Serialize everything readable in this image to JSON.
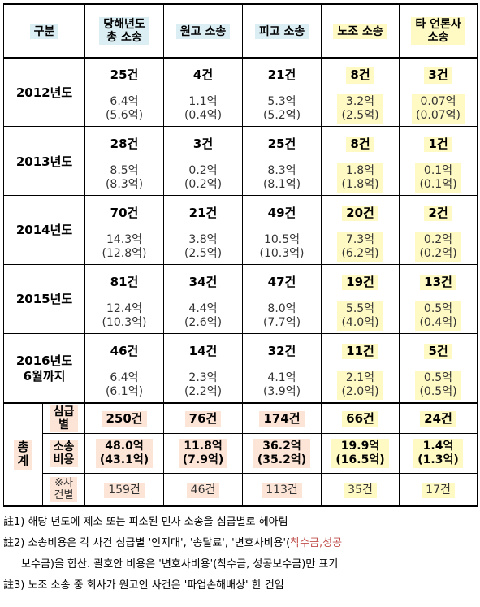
{
  "header": {
    "category": "구분",
    "total_line1": "당해년도",
    "total_line2": "총 소송",
    "plaintiff": "원고 소송",
    "defendant": "피고 소송",
    "labor": "노조 소송",
    "media_line1": "타 언론사",
    "media_line2": "소송"
  },
  "years": [
    {
      "label1": "2012년도",
      "label2": "",
      "total_count": "25건",
      "plaintiff_count": "4건",
      "defendant_count": "21건",
      "labor_count": "8건",
      "media_count": "3건",
      "total_cost": "6.4억",
      "total_cost_sub": "(5.6억)",
      "plaintiff_cost": "1.1억",
      "plaintiff_cost_sub": "(0.4억)",
      "defendant_cost": "5.3억",
      "defendant_cost_sub": "(5.2억)",
      "labor_cost": "3.2억",
      "labor_cost_sub": "(2.5억)",
      "media_cost": "0.07억",
      "media_cost_sub": "(0.07억)"
    },
    {
      "label1": "2013년도",
      "label2": "",
      "total_count": "28건",
      "plaintiff_count": "3건",
      "defendant_count": "25건",
      "labor_count": "8건",
      "media_count": "1건",
      "total_cost": "8.5억",
      "total_cost_sub": "(8.3억)",
      "plaintiff_cost": "0.2억",
      "plaintiff_cost_sub": "(0.2억)",
      "defendant_cost": "8.3억",
      "defendant_cost_sub": "(8.1억)",
      "labor_cost": "1.8억",
      "labor_cost_sub": "(1.8억)",
      "media_cost": "0.1억",
      "media_cost_sub": "(0.1억)"
    },
    {
      "label1": "2014년도",
      "label2": "",
      "total_count": "70건",
      "plaintiff_count": "21건",
      "defendant_count": "49건",
      "labor_count": "20건",
      "media_count": "2건",
      "total_cost": "14.3억",
      "total_cost_sub": "(12.8억)",
      "plaintiff_cost": "3.8억",
      "plaintiff_cost_sub": "(2.5억)",
      "defendant_cost": "10.5억",
      "defendant_cost_sub": "(10.3억)",
      "labor_cost": "7.3억",
      "labor_cost_sub": "(6.2억)",
      "media_cost": "0.2억",
      "media_cost_sub": "(0.2억)"
    },
    {
      "label1": "2015년도",
      "label2": "",
      "total_count": "81건",
      "plaintiff_count": "34건",
      "defendant_count": "47건",
      "labor_count": "19건",
      "media_count": "13건",
      "total_cost": "12.4억",
      "total_cost_sub": "(10.3억)",
      "plaintiff_cost": "4.4억",
      "plaintiff_cost_sub": "(2.6억)",
      "defendant_cost": "8.0억",
      "defendant_cost_sub": "(7.7억)",
      "labor_cost": "5.5억",
      "labor_cost_sub": "(4.0억)",
      "media_cost": "0.5억",
      "media_cost_sub": "(0.4억)"
    },
    {
      "label1": "2016년도",
      "label2": "6월까지",
      "total_count": "46건",
      "plaintiff_count": "14건",
      "defendant_count": "32건",
      "labor_count": "11건",
      "media_count": "5건",
      "total_cost": "6.4억",
      "total_cost_sub": "(6.1억)",
      "plaintiff_cost": "2.3억",
      "plaintiff_cost_sub": "(2.2억)",
      "defendant_cost": "4.1억",
      "defendant_cost_sub": "(3.9억)",
      "labor_cost": "2.1억",
      "labor_cost_sub": "(2.0억)",
      "media_cost": "0.5억",
      "media_cost_sub": "(0.5억)"
    }
  ],
  "totals": {
    "label_char1": "총",
    "label_char2": "계",
    "row1_label1": "심급",
    "row1_label2": "별",
    "row1": [
      "250건",
      "76건",
      "174건",
      "66건",
      "24건"
    ],
    "row2_label1": "소송",
    "row2_label2": "비용",
    "row2": [
      "48.0억",
      "11.8억",
      "36.2억",
      "19.9억",
      "1.4억"
    ],
    "row2_sub": [
      "(43.1억)",
      "(7.9억)",
      "(35.2억)",
      "(16.5억)",
      "(1.3억)"
    ],
    "row3_label1": "※사",
    "row3_label2": "건별",
    "row3": [
      "159건",
      "46건",
      "113건",
      "35건",
      "17건"
    ]
  },
  "notes": {
    "n1": "註1) 해당 년도에 제소 또는 피소된 민사 소송을 심급별로 헤아림",
    "n2_a": "註2) 소송비용은 각 사건 심급별 '인지대', '송달료', '변호사비용'(",
    "n2_pink": "착수금,성공",
    "n2_b": "보수금)을 합산. 괄호안 비용은 '변호사비용'(착수금, 성공보수금)만 표기",
    "n3": "註3) 노조 소송 중 회사가 원고인 사건은 '파업손해배상' 한 건임"
  },
  "colors": {
    "header_blue": "#dbeef4",
    "highlight_yellow": "#fff9c4",
    "totals_pink": "#fce4d6",
    "note_pink": "#c0504d"
  }
}
